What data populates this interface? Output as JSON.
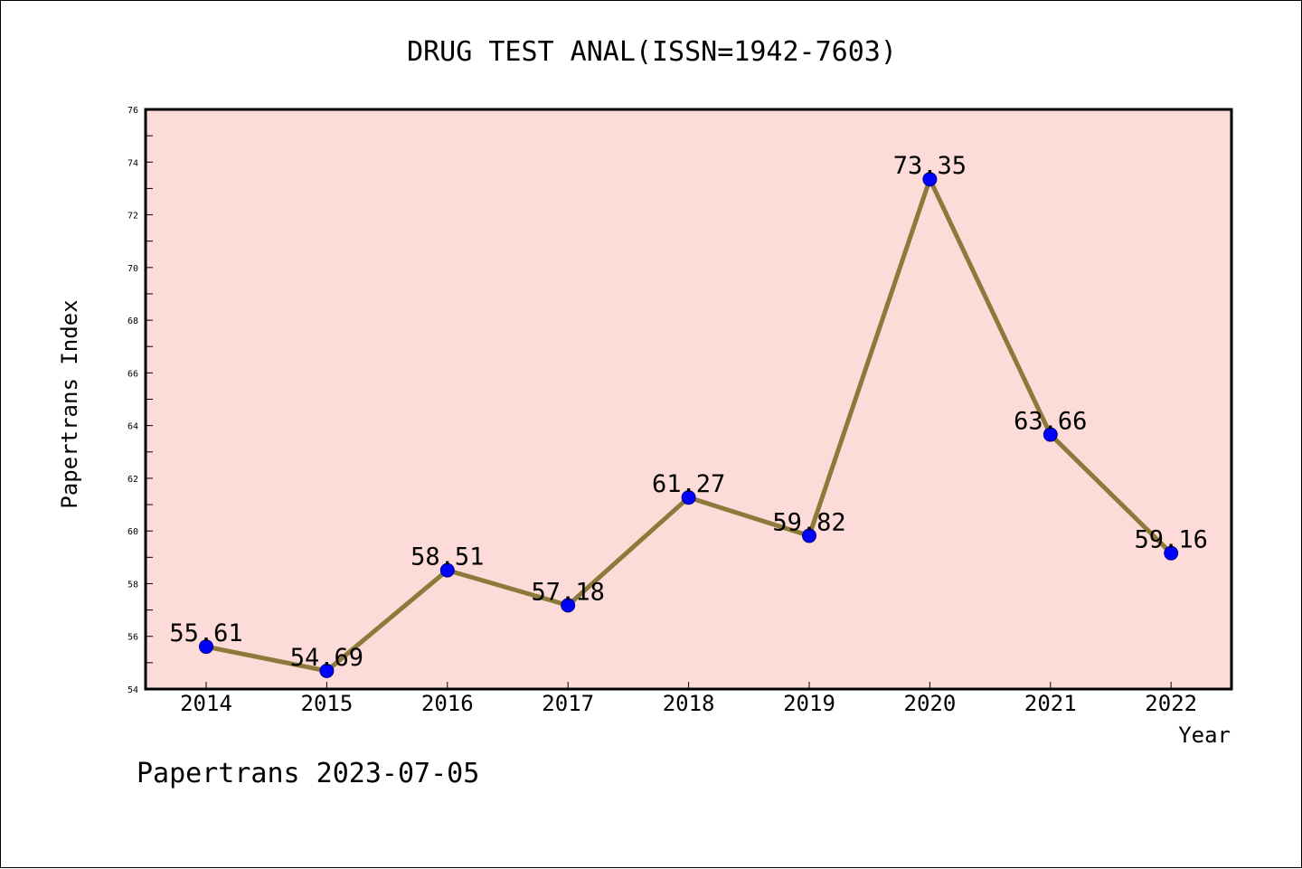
{
  "chart_data": {
    "type": "line",
    "title": "DRUG TEST ANAL(ISSN=1942-7603)",
    "xlabel": "Year",
    "ylabel": "Papertrans Index",
    "categories": [
      "2014",
      "2015",
      "2016",
      "2017",
      "2018",
      "2019",
      "2020",
      "2021",
      "2022"
    ],
    "series": [
      {
        "values": [
          55.61,
          54.69,
          58.51,
          57.18,
          61.27,
          59.82,
          73.35,
          63.66,
          59.16
        ],
        "data_labels": [
          "55.61",
          "54.69",
          "58.51",
          "57.18",
          "61.27",
          "59.82",
          "73.35",
          "63.66",
          "59.16"
        ]
      }
    ],
    "ylim": [
      54,
      76
    ],
    "yticks": [
      "54",
      "56",
      "58",
      "60",
      "62",
      "64",
      "66",
      "68",
      "70",
      "72",
      "74",
      "76"
    ],
    "grid": false,
    "colors": {
      "plot_background": "#fddbd8",
      "line": "#8b7a3a",
      "marker": "#0000ff"
    }
  },
  "footer": "Papertrans 2023-07-05"
}
